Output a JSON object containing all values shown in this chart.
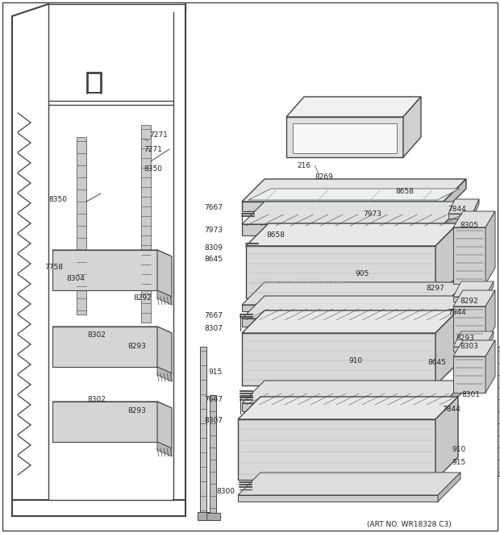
{
  "bg_color": "#ffffff",
  "line_color": "#444444",
  "art_no": "(ART NO. WR18328 C3)",
  "watermark": "eReplacementParts.com",
  "fig_w": 6.2,
  "fig_h": 6.61,
  "dpi": 100
}
